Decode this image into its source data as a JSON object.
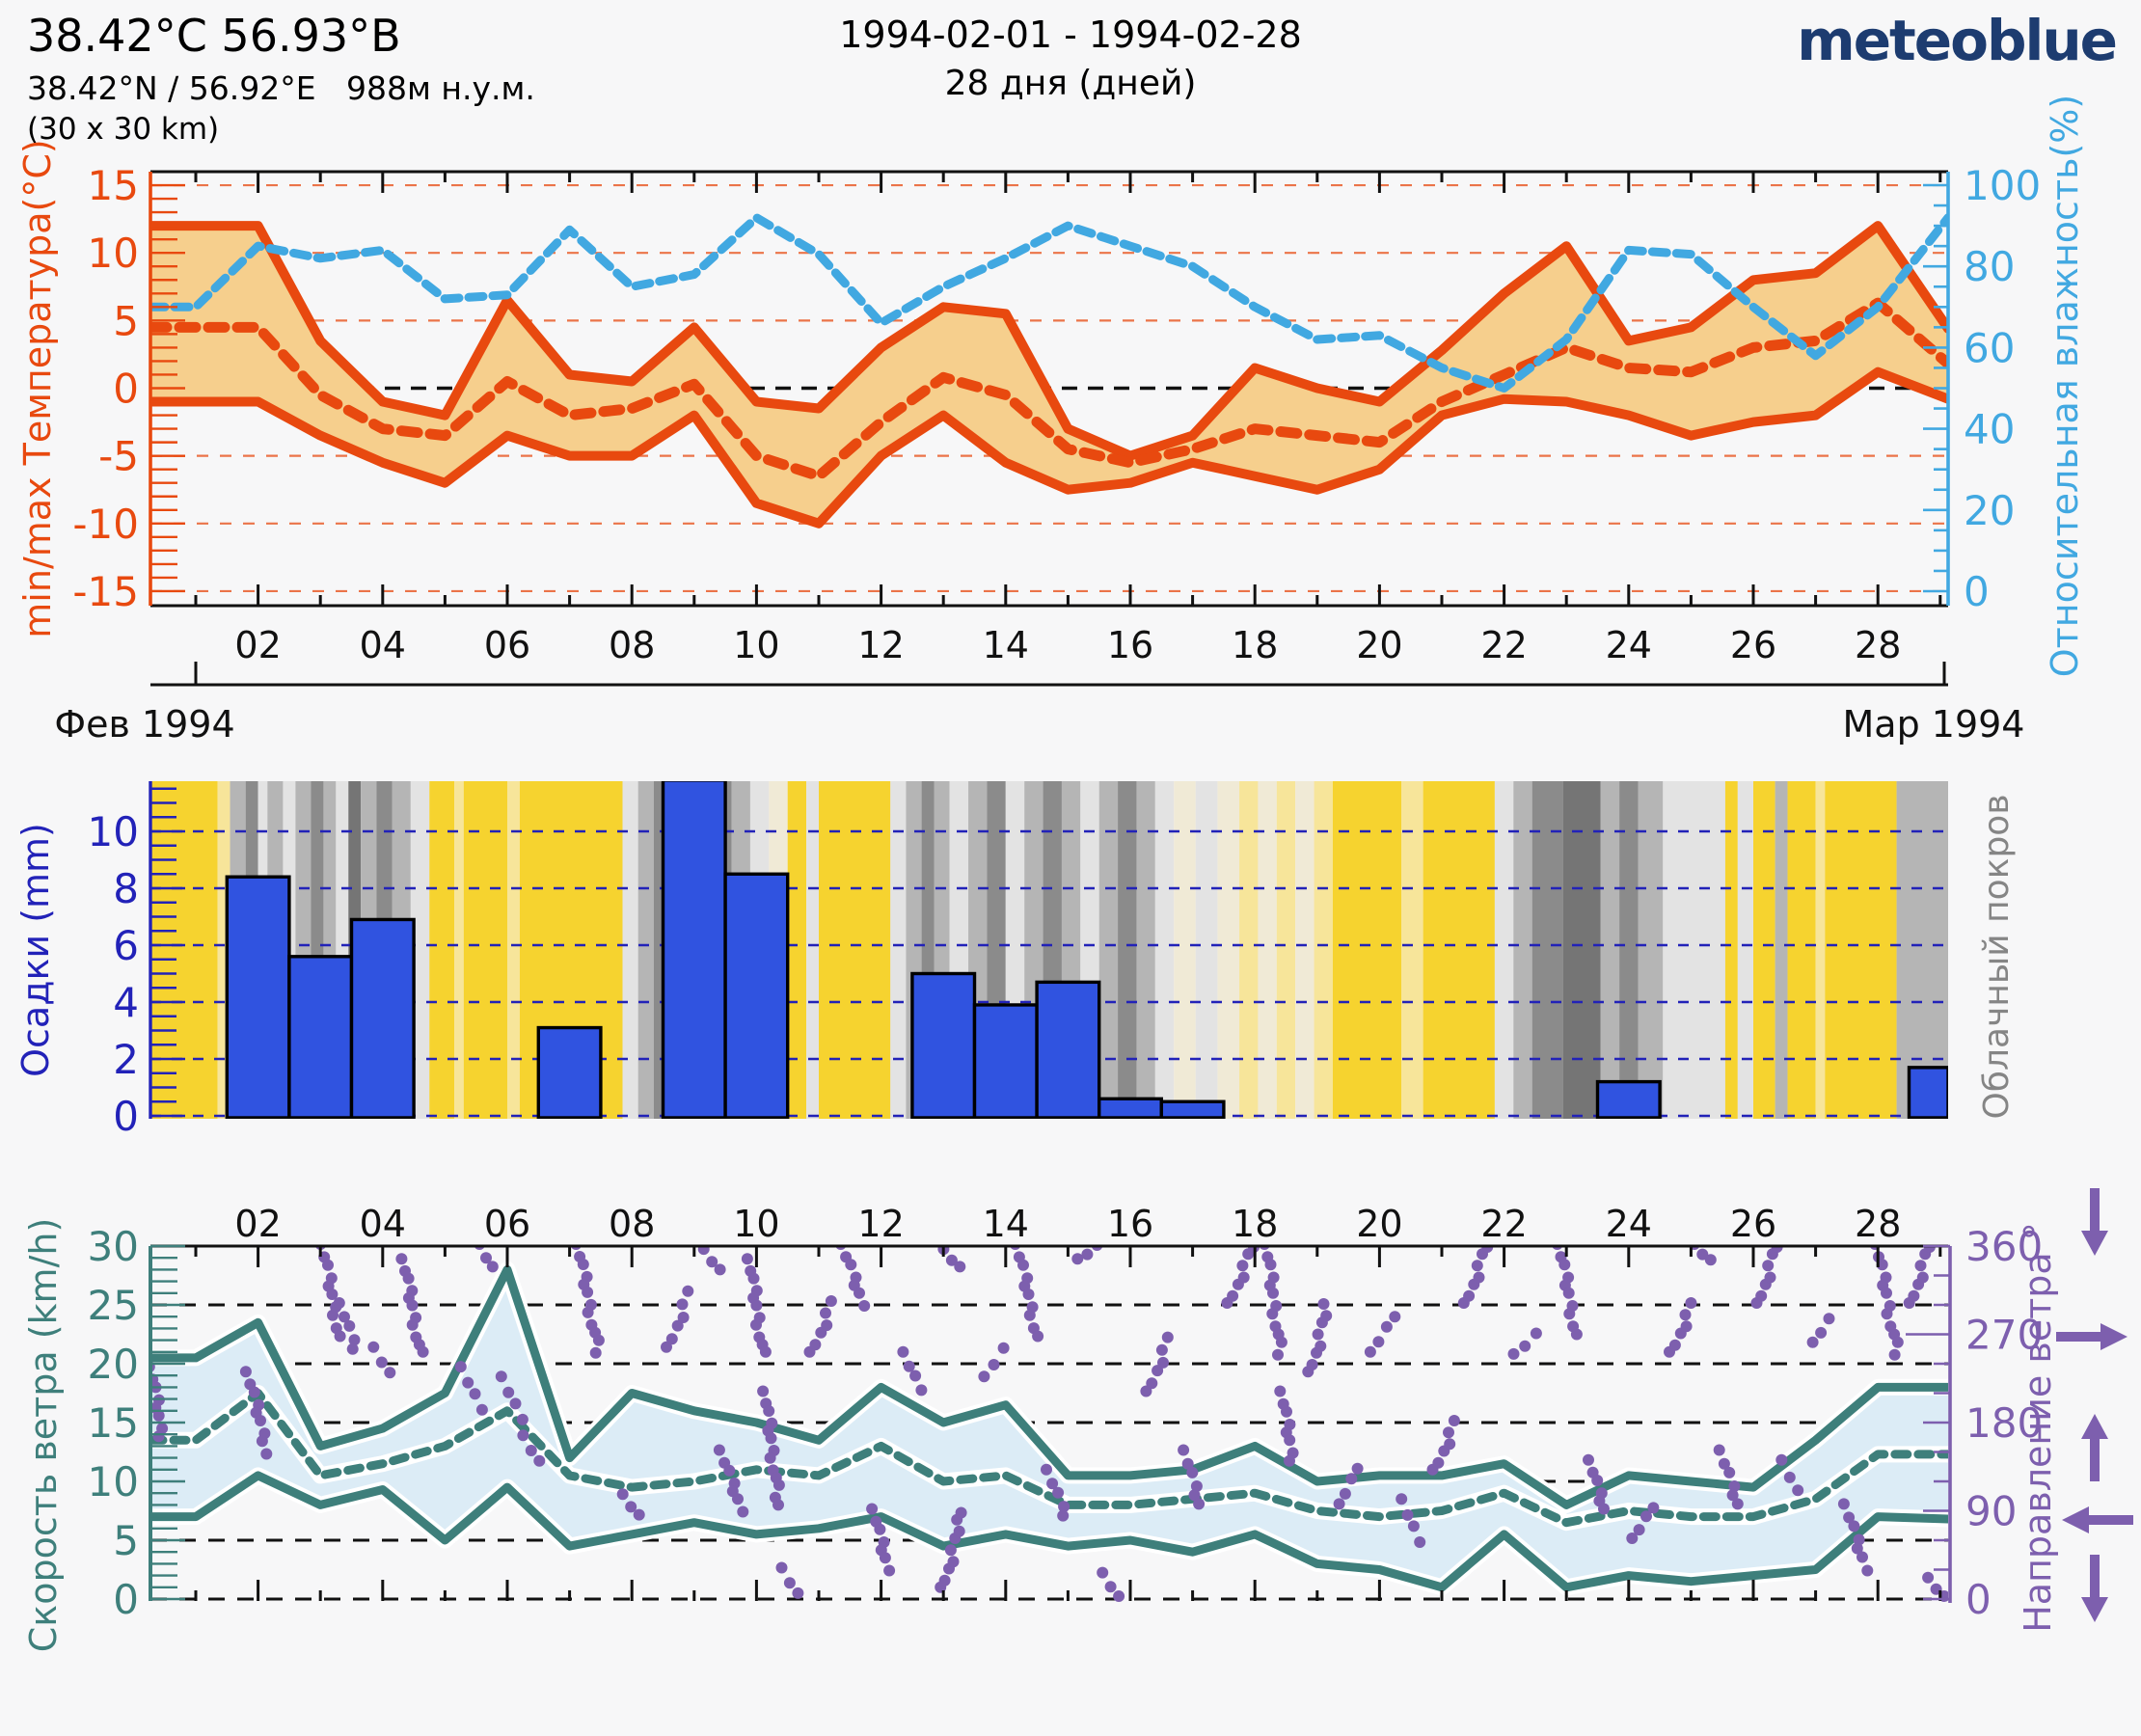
{
  "header": {
    "title": "38.42°C 56.93°B",
    "subtitle": "38.42°N / 56.92°E   988м н.у.м.",
    "area": "(30 x 30 km)",
    "date_range": "1994-02-01 - 1994-02-28",
    "days_label": "28 дня (дней)",
    "logo": "meteoblue"
  },
  "colors": {
    "background": "#f7f7f8",
    "temp_line": "#e8490f",
    "temp_band": "#f6cf8d",
    "humidity": "#41a8e1",
    "precip_bar": "#3053e0",
    "precip_axis": "#2222b8",
    "cloud_label": "#858585",
    "wind_line": "#3e7f7b",
    "wind_band": "#dcecf6",
    "direction": "#7d5fae",
    "logo_navy": "#1d3c70",
    "grid_black": "#111111",
    "cloud_palette": {
      "y": "#f6d32f",
      "py": "#f7e59a",
      "c": "#f0ead6",
      "lg": "#e3e3e3",
      "mg": "#b5b5b5",
      "dg": "#8b8b8b",
      "dk": "#757575"
    }
  },
  "chart_data": [
    {
      "id": "temperature_humidity",
      "type": "line",
      "ylabel_left": "min/max Температура(°C)",
      "ylabel_right": "Относительная влажность(%)",
      "ylim_left": [
        -15,
        15
      ],
      "ylim_right": [
        0,
        100
      ],
      "left_ticks": [
        15,
        10,
        5,
        0,
        -5,
        -10,
        -15
      ],
      "right_ticks": [
        100,
        80,
        60,
        40,
        20,
        0
      ],
      "x_tick_days": [
        2,
        4,
        6,
        8,
        10,
        12,
        14,
        16,
        18,
        20,
        22,
        24,
        26,
        28
      ],
      "x_tick_labels": [
        "02",
        "04",
        "06",
        "08",
        "10",
        "12",
        "14",
        "16",
        "18",
        "20",
        "22",
        "24",
        "26",
        "28"
      ],
      "month_axis": {
        "left_label": "Фев 1994",
        "right_label": "Мар 1994"
      },
      "days": [
        1,
        2,
        3,
        4,
        5,
        6,
        7,
        8,
        9,
        10,
        11,
        12,
        13,
        14,
        15,
        16,
        17,
        18,
        19,
        20,
        21,
        22,
        23,
        24,
        25,
        26,
        27,
        28
      ],
      "series": [
        {
          "name": "t_max",
          "values": [
            12,
            12,
            3.5,
            -1,
            -2,
            6.5,
            1,
            0.5,
            4.5,
            -1,
            -1.5,
            3,
            6,
            5.5,
            -3,
            -5,
            -3.5,
            1.5,
            0,
            -1,
            2.8,
            7,
            10.5,
            3.5,
            4.5,
            8,
            8.5,
            12
          ],
          "end_value": 4.4
        },
        {
          "name": "t_min",
          "values": [
            -1,
            -1,
            -3.5,
            -5.5,
            -7,
            -3.5,
            -5,
            -5,
            -2,
            -8.5,
            -10,
            -5,
            -2,
            -5.5,
            -7.5,
            -7,
            -5.5,
            -6.5,
            -7.5,
            -6,
            -2,
            -0.8,
            -1,
            -2,
            -3.5,
            -2.5,
            -2,
            1.2
          ],
          "end_value": -0.8
        },
        {
          "name": "t_mean",
          "values": [
            4.5,
            4.5,
            -0.5,
            -3,
            -3.5,
            0.5,
            -2,
            -1.5,
            0.3,
            -5,
            -6.5,
            -2.5,
            0.8,
            -0.5,
            -4.5,
            -5.5,
            -4.5,
            -3,
            -3.5,
            -4,
            -1,
            1,
            3,
            1.5,
            1.2,
            3,
            3.5,
            6.3
          ],
          "end_value": 1.8
        },
        {
          "name": "humidity_pct",
          "values": [
            70,
            85,
            82,
            84,
            72,
            73,
            89,
            75,
            78,
            92,
            83,
            66,
            75,
            82,
            90,
            85,
            80,
            70,
            62,
            63,
            55,
            50,
            62,
            84,
            83,
            70,
            58,
            70
          ],
          "end_value": 92
        }
      ]
    },
    {
      "id": "precipitation_cloudcover",
      "type": "bar",
      "ylabel_left": "Осадки (mm)",
      "ylabel_right": "Облачный покров",
      "ylim": [
        0,
        11.8
      ],
      "left_ticks": [
        10,
        8,
        6,
        4,
        2,
        0
      ],
      "days": [
        1,
        2,
        3,
        4,
        5,
        6,
        7,
        8,
        9,
        10,
        11,
        12,
        13,
        14,
        15,
        16,
        17,
        18,
        19,
        20,
        21,
        22,
        23,
        24,
        25,
        26,
        27,
        28,
        29
      ],
      "values_mm": [
        0,
        8.4,
        5.6,
        6.9,
        0,
        0,
        3.1,
        0,
        11.8,
        8.5,
        0,
        0,
        5.0,
        3.9,
        4.7,
        0.6,
        0.5,
        0,
        0,
        0,
        0,
        0,
        0,
        1.2,
        0,
        0,
        0,
        0,
        1.7
      ],
      "cloud_segments": [
        [
          0.27,
          1.35,
          "y"
        ],
        [
          1.35,
          1.55,
          "py"
        ],
        [
          1.55,
          1.8,
          "mg"
        ],
        [
          1.8,
          2.0,
          "dg"
        ],
        [
          2.0,
          2.15,
          "lg"
        ],
        [
          2.15,
          2.4,
          "mg"
        ],
        [
          2.4,
          2.6,
          "lg"
        ],
        [
          2.6,
          2.85,
          "mg"
        ],
        [
          2.85,
          3.05,
          "dg"
        ],
        [
          3.05,
          3.25,
          "mg"
        ],
        [
          3.25,
          3.45,
          "lg"
        ],
        [
          3.45,
          3.65,
          "dk"
        ],
        [
          3.65,
          3.9,
          "mg"
        ],
        [
          3.9,
          4.15,
          "dg"
        ],
        [
          4.15,
          4.45,
          "mg"
        ],
        [
          4.45,
          4.75,
          "lg"
        ],
        [
          4.75,
          5.15,
          "y"
        ],
        [
          5.15,
          5.3,
          "py"
        ],
        [
          5.3,
          6.0,
          "y"
        ],
        [
          6.0,
          6.2,
          "py"
        ],
        [
          6.2,
          7.85,
          "y"
        ],
        [
          7.85,
          8.1,
          "lg"
        ],
        [
          8.1,
          8.35,
          "mg"
        ],
        [
          8.35,
          8.6,
          "dg"
        ],
        [
          8.6,
          8.85,
          "mg"
        ],
        [
          8.85,
          9.1,
          "lg"
        ],
        [
          9.1,
          9.35,
          "mg"
        ],
        [
          9.35,
          9.6,
          "dg"
        ],
        [
          9.6,
          9.9,
          "mg"
        ],
        [
          9.9,
          10.2,
          "lg"
        ],
        [
          10.2,
          10.5,
          "c"
        ],
        [
          10.5,
          10.8,
          "y"
        ],
        [
          10.8,
          11.0,
          "lg"
        ],
        [
          11.0,
          12.15,
          "y"
        ],
        [
          12.15,
          12.4,
          "lg"
        ],
        [
          12.4,
          12.65,
          "mg"
        ],
        [
          12.65,
          12.85,
          "dg"
        ],
        [
          12.85,
          13.1,
          "mg"
        ],
        [
          13.1,
          13.4,
          "lg"
        ],
        [
          13.4,
          13.7,
          "mg"
        ],
        [
          13.7,
          14.0,
          "dg"
        ],
        [
          14.0,
          14.3,
          "lg"
        ],
        [
          14.3,
          14.6,
          "mg"
        ],
        [
          14.6,
          14.9,
          "dg"
        ],
        [
          14.9,
          15.2,
          "mg"
        ],
        [
          15.2,
          15.5,
          "lg"
        ],
        [
          15.5,
          15.8,
          "mg"
        ],
        [
          15.8,
          16.1,
          "dg"
        ],
        [
          16.1,
          16.4,
          "mg"
        ],
        [
          16.4,
          16.7,
          "lg"
        ],
        [
          16.7,
          17.05,
          "c"
        ],
        [
          17.05,
          17.4,
          "lg"
        ],
        [
          17.4,
          17.75,
          "c"
        ],
        [
          17.75,
          18.05,
          "py"
        ],
        [
          18.05,
          18.35,
          "c"
        ],
        [
          18.35,
          18.65,
          "py"
        ],
        [
          18.65,
          18.95,
          "c"
        ],
        [
          18.95,
          19.25,
          "py"
        ],
        [
          19.25,
          20.35,
          "y"
        ],
        [
          20.35,
          20.7,
          "py"
        ],
        [
          20.7,
          21.85,
          "y"
        ],
        [
          21.85,
          22.15,
          "lg"
        ],
        [
          22.15,
          22.45,
          "mg"
        ],
        [
          22.45,
          22.95,
          "dg"
        ],
        [
          22.95,
          23.55,
          "dk"
        ],
        [
          23.55,
          23.85,
          "mg"
        ],
        [
          23.85,
          24.15,
          "dg"
        ],
        [
          24.15,
          24.55,
          "mg"
        ],
        [
          24.55,
          25.55,
          "lg"
        ],
        [
          25.55,
          25.75,
          "y"
        ],
        [
          25.75,
          26.0,
          "lg"
        ],
        [
          26.0,
          26.35,
          "y"
        ],
        [
          26.35,
          26.55,
          "mg"
        ],
        [
          26.55,
          27.0,
          "y"
        ],
        [
          27.0,
          27.15,
          "py"
        ],
        [
          27.15,
          28.3,
          "y"
        ],
        [
          28.3,
          29.2,
          "mg"
        ]
      ]
    },
    {
      "id": "wind",
      "type": "line",
      "ylabel_left": "Скорость ветра (km/h)",
      "ylabel_right": "Направление ветра °",
      "ylim_left": [
        0,
        30
      ],
      "ylim_right": [
        0,
        360
      ],
      "left_ticks": [
        30,
        25,
        20,
        15,
        10,
        5,
        0
      ],
      "right_ticks": [
        360,
        270,
        180,
        90,
        0
      ],
      "x_tick_days": [
        2,
        4,
        6,
        8,
        10,
        12,
        14,
        16,
        18,
        20,
        22,
        24,
        26,
        28
      ],
      "x_tick_labels": [
        "02",
        "04",
        "06",
        "08",
        "10",
        "12",
        "14",
        "16",
        "18",
        "20",
        "22",
        "24",
        "26",
        "28"
      ],
      "days": [
        1,
        2,
        3,
        4,
        5,
        6,
        7,
        8,
        9,
        10,
        11,
        12,
        13,
        14,
        15,
        16,
        17,
        18,
        19,
        20,
        21,
        22,
        23,
        24,
        25,
        26,
        27,
        28
      ],
      "series": [
        {
          "name": "wind_max",
          "values": [
            20.5,
            23.5,
            13,
            14.5,
            17.5,
            28,
            12,
            17.5,
            16,
            15,
            13.5,
            18,
            15,
            16.5,
            10.5,
            10.5,
            11,
            13,
            10,
            10.5,
            10.5,
            11.5,
            8,
            10.5,
            10,
            9.5,
            13.5,
            18
          ],
          "end_value": 18
        },
        {
          "name": "wind_mean",
          "values": [
            13.5,
            17.5,
            10.5,
            11.5,
            13,
            16,
            10.5,
            9.5,
            10,
            11,
            10.5,
            13,
            10,
            10.5,
            8,
            8,
            8.5,
            9,
            7.5,
            7,
            7.5,
            9,
            6.5,
            7.5,
            7,
            7,
            8.5,
            12.3
          ],
          "end_value": 12.3
        },
        {
          "name": "wind_min",
          "values": [
            7,
            10.5,
            8,
            9.3,
            5,
            9.5,
            4.5,
            5.5,
            6.5,
            5.5,
            6,
            7,
            4.5,
            5.5,
            4.5,
            5,
            4,
            5.5,
            3,
            2.5,
            1,
            5.5,
            1,
            2,
            1.5,
            2,
            2.5,
            7
          ],
          "end_value": 6.8
        }
      ],
      "direction_runs_day_deg": [
        [
          0.3,
          0.45,
          235,
          165
        ],
        [
          1.85,
          2.15,
          230,
          150
        ],
        [
          3.05,
          3.3,
          360,
          268
        ],
        [
          3.35,
          3.55,
          300,
          255
        ],
        [
          3.9,
          4.1,
          255,
          230
        ],
        [
          4.35,
          4.6,
          345,
          250
        ],
        [
          5.3,
          5.55,
          235,
          195
        ],
        [
          5.6,
          5.75,
          360,
          338
        ],
        [
          5.95,
          6.2,
          225,
          185
        ],
        [
          6.3,
          6.5,
          165,
          140
        ],
        [
          7.15,
          7.45,
          360,
          252
        ],
        [
          7.9,
          8.1,
          105,
          85
        ],
        [
          8.6,
          8.9,
          255,
          312
        ],
        [
          9.2,
          9.4,
          355,
          335
        ],
        [
          9.45,
          9.75,
          150,
          90
        ],
        [
          9.9,
          10.1,
          345,
          250
        ],
        [
          10.15,
          10.35,
          210,
          95
        ],
        [
          10.45,
          10.65,
          30,
          5
        ],
        [
          10.9,
          11.2,
          250,
          302
        ],
        [
          11.4,
          11.7,
          360,
          300
        ],
        [
          11.9,
          12.1,
          90,
          30
        ],
        [
          12.4,
          12.6,
          250,
          215
        ],
        [
          13.0,
          13.3,
          10,
          90
        ],
        [
          13.05,
          13.25,
          355,
          338
        ],
        [
          13.7,
          13.95,
          225,
          255
        ],
        [
          14.2,
          14.5,
          360,
          268
        ],
        [
          14.7,
          14.95,
          130,
          85
        ],
        [
          15.2,
          15.45,
          345,
          360
        ],
        [
          15.6,
          15.8,
          25,
          2
        ],
        [
          16.3,
          16.6,
          210,
          265
        ],
        [
          16.9,
          17.1,
          150,
          95
        ],
        [
          17.6,
          17.95,
          300,
          360
        ],
        [
          18.2,
          18.4,
          360,
          250
        ],
        [
          18.45,
          18.6,
          210,
          140
        ],
        [
          18.9,
          19.15,
          230,
          300
        ],
        [
          19.4,
          19.6,
          95,
          135
        ],
        [
          19.9,
          20.2,
          250,
          290
        ],
        [
          20.4,
          20.6,
          100,
          60
        ],
        [
          20.9,
          21.2,
          130,
          180
        ],
        [
          21.4,
          21.7,
          300,
          360
        ],
        [
          22.2,
          22.5,
          248,
          270
        ],
        [
          22.9,
          23.15,
          360,
          270
        ],
        [
          23.4,
          23.6,
          140,
          90
        ],
        [
          24.1,
          24.35,
          60,
          95
        ],
        [
          24.7,
          25.0,
          250,
          300
        ],
        [
          25.1,
          25.3,
          360,
          345
        ],
        [
          25.5,
          25.75,
          150,
          95
        ],
        [
          26.1,
          26.35,
          300,
          360
        ],
        [
          26.5,
          26.7,
          140,
          110
        ],
        [
          27.0,
          27.2,
          260,
          285
        ],
        [
          27.5,
          27.8,
          95,
          30
        ],
        [
          28.0,
          28.3,
          360,
          250
        ],
        [
          28.55,
          28.8,
          300,
          360
        ],
        [
          28.85,
          29.05,
          20,
          2
        ]
      ],
      "direction_arrows": [
        {
          "at_deg": 360,
          "dir": "down"
        },
        {
          "at_deg": 270,
          "dir": "right"
        },
        {
          "at_deg": 180,
          "dir": "up"
        },
        {
          "at_deg": 90,
          "dir": "left"
        },
        {
          "at_deg": 0,
          "dir": "down"
        }
      ]
    }
  ]
}
